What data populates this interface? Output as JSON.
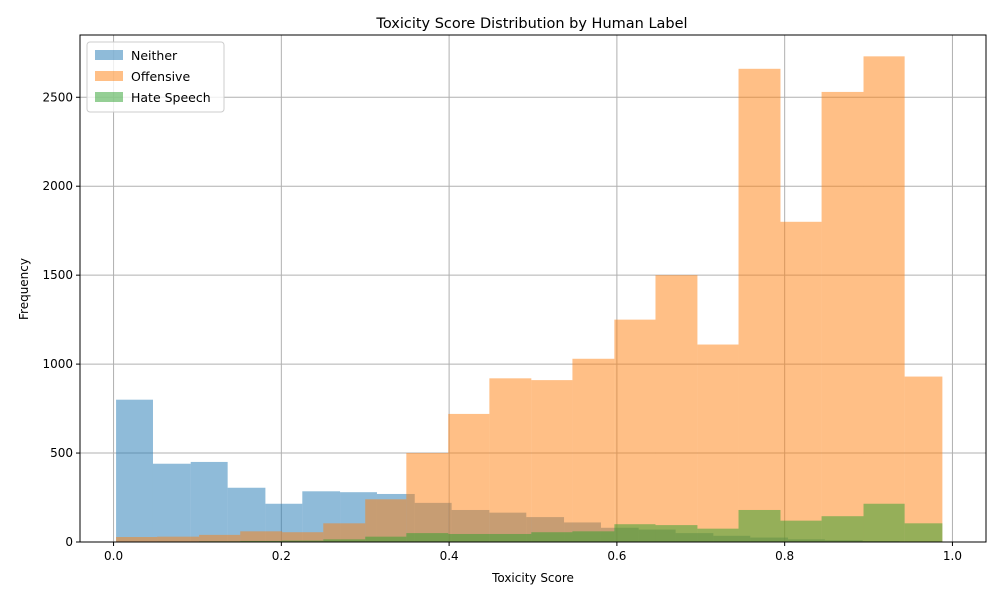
{
  "chart_data": {
    "type": "bar",
    "title": "Toxicity Score Distribution by Human Label",
    "xlabel": "Toxicity Score",
    "ylabel": "Frequency",
    "xlim": [
      -0.04,
      1.04
    ],
    "ylim": [
      0,
      2850
    ],
    "xticks": [
      0.0,
      0.2,
      0.4,
      0.6,
      0.8,
      1.0
    ],
    "xtick_labels": [
      "0.0",
      "0.2",
      "0.4",
      "0.6",
      "0.8",
      "1.0"
    ],
    "yticks": [
      0,
      500,
      1000,
      1500,
      2000,
      2500
    ],
    "ytick_labels": [
      "0",
      "500",
      "1000",
      "1500",
      "2000",
      "2500"
    ],
    "grid": true,
    "legend_position": "top-left",
    "alpha": 0.5,
    "series": [
      {
        "name": "Neither",
        "color": "#1f77b4",
        "bin_edges": [
          0.003,
          0.047,
          0.092,
          0.136,
          0.181,
          0.225,
          0.27,
          0.314,
          0.359,
          0.403,
          0.448,
          0.492,
          0.537,
          0.581,
          0.626,
          0.67,
          0.715,
          0.759,
          0.804,
          0.848,
          0.893,
          0.937,
          0.982
        ],
        "counts": [
          800,
          440,
          450,
          305,
          215,
          285,
          280,
          270,
          220,
          180,
          165,
          140,
          110,
          80,
          70,
          50,
          35,
          25,
          15,
          10,
          5,
          3
        ]
      },
      {
        "name": "Offensive",
        "color": "#ff7f0e",
        "bin_edges": [
          0.003,
          0.052,
          0.102,
          0.151,
          0.201,
          0.25,
          0.3,
          0.349,
          0.399,
          0.448,
          0.498,
          0.547,
          0.597,
          0.646,
          0.696,
          0.745,
          0.795,
          0.844,
          0.894,
          0.943,
          0.988
        ],
        "counts": [
          28,
          30,
          40,
          60,
          55,
          105,
          240,
          500,
          720,
          920,
          910,
          1030,
          1250,
          1500,
          1110,
          2660,
          1800,
          2530,
          2730,
          930
        ]
      },
      {
        "name": "Hate Speech",
        "color": "#2ca02c",
        "bin_edges": [
          0.003,
          0.052,
          0.102,
          0.151,
          0.201,
          0.25,
          0.3,
          0.349,
          0.399,
          0.448,
          0.498,
          0.547,
          0.597,
          0.646,
          0.696,
          0.745,
          0.795,
          0.844,
          0.894,
          0.943,
          0.988
        ],
        "counts": [
          2,
          3,
          4,
          6,
          8,
          15,
          30,
          50,
          45,
          45,
          55,
          60,
          100,
          95,
          75,
          180,
          120,
          145,
          215,
          105
        ]
      }
    ]
  }
}
